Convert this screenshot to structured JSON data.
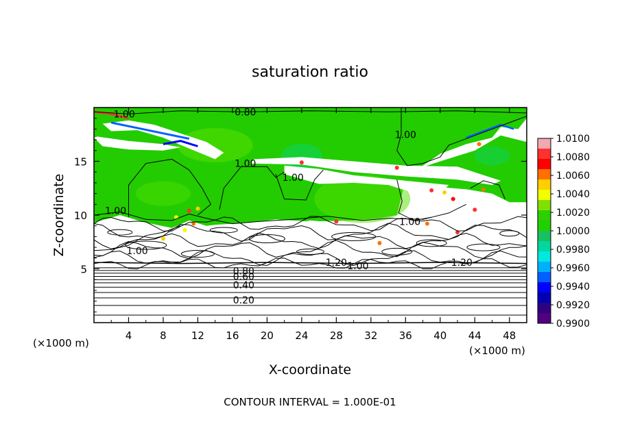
{
  "chart_data": {
    "type": "heatmap",
    "title": "saturation ratio",
    "xlabel": "X-coordinate",
    "ylabel": "Z-coordinate",
    "x_units_left": "(×1000 m)",
    "x_units_right": "(×1000 m)",
    "xlim": [
      0,
      50
    ],
    "ylim": [
      0,
      20
    ],
    "x_ticks": [
      "4",
      "8",
      "12",
      "16",
      "20",
      "24",
      "28",
      "32",
      "36",
      "40",
      "44",
      "48"
    ],
    "y_ticks": [
      "5",
      "10",
      "15"
    ],
    "footer": "CONTOUR INTERVAL = 1.000E-01",
    "colorbar": {
      "labels": [
        "1.0100",
        "1.0080",
        "1.0060",
        "1.0040",
        "1.0020",
        "1.0000",
        "0.9980",
        "0.9960",
        "0.9940",
        "0.9920",
        "0.9900"
      ],
      "colors": [
        "#f4a8b0",
        "#ff3030",
        "#ff0000",
        "#ff7000",
        "#ffd000",
        "#f2ff00",
        "#80e000",
        "#2ccf00",
        "#20d000",
        "#18c060",
        "#00d8a0",
        "#00e8e0",
        "#00b0ff",
        "#0060ff",
        "#0000ff",
        "#0000b0",
        "#300080",
        "#500080"
      ]
    },
    "contour_labels": [
      {
        "text": "1.00",
        "x": 3.5,
        "y": 19.4
      },
      {
        "text": "0.80",
        "x": 17.5,
        "y": 19.6
      },
      {
        "text": "1.00",
        "x": 17.5,
        "y": 14.8
      },
      {
        "text": "1.00",
        "x": 23,
        "y": 13.5
      },
      {
        "text": "1.00",
        "x": 36,
        "y": 17.5
      },
      {
        "text": "1.00",
        "x": 36.5,
        "y": 9.4
      },
      {
        "text": "1.00",
        "x": 2.5,
        "y": 10.4
      },
      {
        "text": "1.00",
        "x": 5,
        "y": 6.7
      },
      {
        "text": "1.20",
        "x": 28,
        "y": 5.6
      },
      {
        "text": "1.00",
        "x": 30.5,
        "y": 5.3
      },
      {
        "text": "1.20",
        "x": 42.5,
        "y": 5.6
      },
      {
        "text": "0.80",
        "x": 17.3,
        "y": 4.8
      },
      {
        "text": "0.60",
        "x": 17.3,
        "y": 4.3
      },
      {
        "text": "0.40",
        "x": 17.3,
        "y": 3.5
      },
      {
        "text": "0.20",
        "x": 17.3,
        "y": 2.1
      }
    ]
  }
}
